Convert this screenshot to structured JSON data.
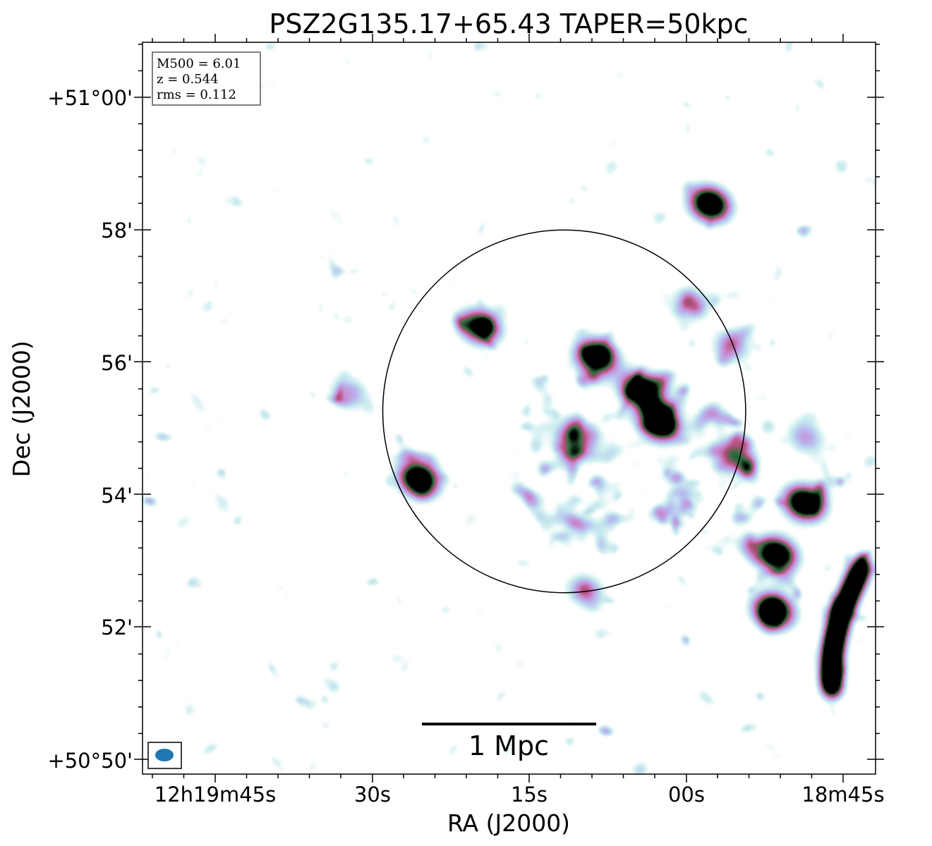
{
  "chart_data": {
    "type": "heatmap",
    "title": "PSZ2G135.17+65.43 TAPER=50kpc",
    "xlabel": "RA (J2000)",
    "ylabel": "Dec (J2000)",
    "x_ticks": [
      "12h19m45s",
      "30s",
      "15s",
      "00s",
      "18m45s"
    ],
    "y_ticks": [
      "+51°00'",
      "58'",
      "56'",
      "54'",
      "52'",
      "+50°50'"
    ],
    "info_box": [
      "M500 = 6.01",
      "z = 0.544",
      "rms = 0.112"
    ],
    "scalebar_label": "1 Mpc",
    "colormap": [
      "#ffffff",
      "#c9ecee",
      "#b7bdf0",
      "#c98ad2",
      "#b84e7a",
      "#2e6e3e",
      "#000000"
    ],
    "beam_color": "#1f77b4",
    "x_range_deg": [
      184.9467,
      184.6842
    ],
    "y_range_deg": [
      50.83,
      51.015
    ],
    "circle": {
      "ra_deg": 184.7957,
      "dec_deg": 50.9217,
      "radius_arcmin": 2.75
    },
    "scalebar_length_mpc": 1,
    "grid": false,
    "sources": [
      {
        "ra": 184.7438,
        "dec": 50.9743,
        "peak": 5.0
      },
      {
        "ra": 184.826,
        "dec": 50.9433,
        "peak": 4.2
      },
      {
        "ra": 184.7845,
        "dec": 50.9357,
        "peak": 5.0
      },
      {
        "ra": 184.7682,
        "dec": 50.9272,
        "peak": 5.0
      },
      {
        "ra": 184.7618,
        "dec": 50.9188,
        "peak": 5.0
      },
      {
        "ra": 184.735,
        "dec": 50.9107,
        "peak": 3.2
      },
      {
        "ra": 184.848,
        "dec": 50.9048,
        "peak": 5.0
      },
      {
        "ra": 184.7925,
        "dec": 50.9147,
        "peak": 3.0
      },
      {
        "ra": 184.71,
        "dec": 50.8987,
        "peak": 5.0
      },
      {
        "ra": 184.72,
        "dec": 50.8857,
        "peak": 5.0
      },
      {
        "ra": 184.721,
        "dec": 50.8715,
        "peak": 5.0
      },
      {
        "ra": 184.7883,
        "dec": 50.8765,
        "peak": 2.2
      },
      {
        "ra": 184.873,
        "dec": 50.9265,
        "peak": 2.0
      },
      {
        "ra": 184.7095,
        "dec": 50.9153,
        "peak": 2.0
      },
      {
        "ra": 184.736,
        "dec": 50.9383,
        "peak": 2.0
      },
      {
        "ra": 184.7505,
        "dec": 50.9493,
        "peak": 2.0
      }
    ]
  }
}
